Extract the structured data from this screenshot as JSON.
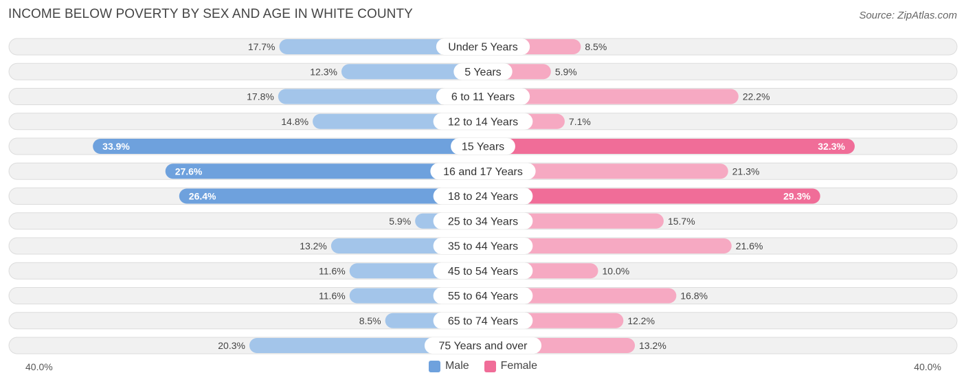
{
  "title": "INCOME BELOW POVERTY BY SEX AND AGE IN WHITE COUNTY",
  "source": "Source: ZipAtlas.com",
  "colors": {
    "male": "#6ea1dd",
    "male_light": "#a3c5ea",
    "female": "#f06d98",
    "female_light": "#f6a9c2"
  },
  "chart_data": {
    "type": "bar",
    "orientation": "horizontal-diverging",
    "title": "INCOME BELOW POVERTY BY SEX AND AGE IN WHITE COUNTY",
    "categories": [
      "Under 5 Years",
      "5 Years",
      "6 to 11 Years",
      "12 to 14 Years",
      "15 Years",
      "16 and 17 Years",
      "18 to 24 Years",
      "25 to 34 Years",
      "35 to 44 Years",
      "45 to 54 Years",
      "55 to 64 Years",
      "65 to 74 Years",
      "75 Years and over"
    ],
    "series": [
      {
        "name": "Male",
        "values": [
          17.7,
          12.3,
          17.8,
          14.8,
          33.9,
          27.6,
          26.4,
          5.9,
          13.2,
          11.6,
          11.6,
          8.5,
          20.3
        ]
      },
      {
        "name": "Female",
        "values": [
          8.5,
          5.9,
          22.2,
          7.1,
          32.3,
          21.3,
          29.3,
          15.7,
          21.6,
          10.0,
          16.8,
          12.2,
          13.2
        ]
      }
    ],
    "xlim": [
      -40,
      40
    ],
    "axis_labels": {
      "left": "40.0%",
      "right": "40.0%"
    },
    "legend": [
      "Male",
      "Female"
    ],
    "legend_position": "bottom-center"
  }
}
